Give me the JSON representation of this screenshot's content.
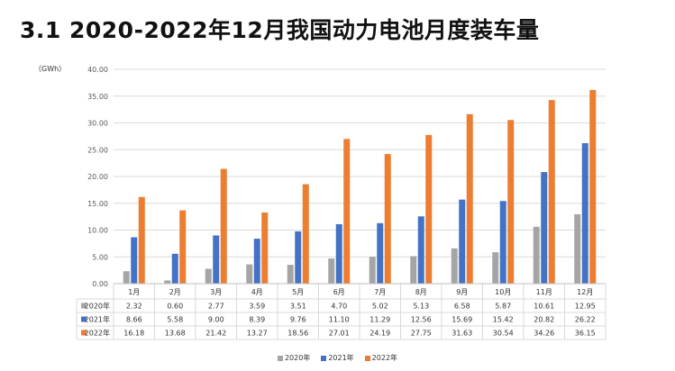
{
  "title": "3.1 2020-2022年12月我国动力电池月度装车量",
  "unit": "（GWh）",
  "colors": {
    "2020年": "#a5a5a5",
    "2021年": "#4472c4",
    "2022年": "#ed7d31"
  },
  "chart_data": {
    "type": "bar",
    "categories": [
      "1月",
      "2月",
      "3月",
      "4月",
      "5月",
      "6月",
      "7月",
      "8月",
      "9月",
      "10月",
      "11月",
      "12月"
    ],
    "series": [
      {
        "name": "2020年",
        "values": [
          2.32,
          0.6,
          2.77,
          3.59,
          3.51,
          4.7,
          5.02,
          5.13,
          6.58,
          5.87,
          10.61,
          12.95
        ]
      },
      {
        "name": "2021年",
        "values": [
          8.66,
          5.58,
          9.0,
          8.39,
          9.76,
          11.1,
          11.29,
          12.56,
          15.69,
          15.42,
          20.82,
          26.22
        ]
      },
      {
        "name": "2022年",
        "values": [
          16.18,
          13.68,
          21.42,
          13.27,
          18.56,
          27.01,
          24.19,
          27.75,
          31.63,
          30.54,
          34.26,
          36.15
        ]
      }
    ],
    "ylim": [
      0,
      40
    ],
    "yticks": [
      "0.00",
      "5.00",
      "10.00",
      "15.00",
      "20.00",
      "25.00",
      "30.00",
      "35.00",
      "40.00"
    ],
    "grid": true,
    "data_table": true,
    "legend": "bottom"
  }
}
